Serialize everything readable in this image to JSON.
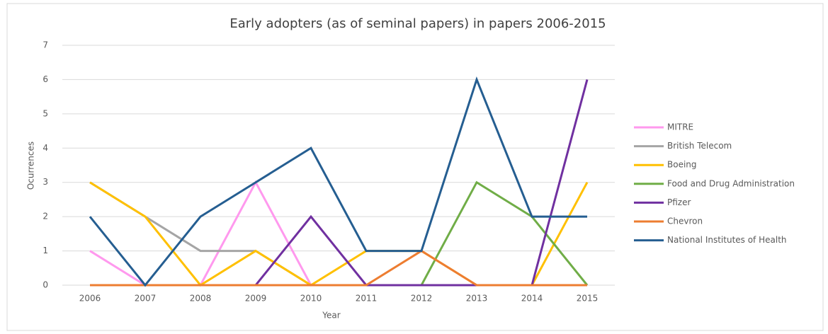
{
  "chart_data": {
    "type": "line",
    "title": "Early adopters (as of seminal papers) in papers 2006-2015",
    "x_label": "Year",
    "y_label": "Ocurrences",
    "categories": [
      "2006",
      "2007",
      "2008",
      "2009",
      "2010",
      "2011",
      "2012",
      "2013",
      "2014",
      "2015"
    ],
    "series": [
      {
        "name": "MITRE",
        "color": "#ff99ee",
        "values": [
          1,
          0,
          0,
          3,
          0,
          0,
          0,
          0,
          0,
          0
        ]
      },
      {
        "name": "British Telecom",
        "color": "#a5a5a5",
        "values": [
          3,
          2,
          1,
          1,
          0,
          0,
          0,
          0,
          0,
          0
        ]
      },
      {
        "name": "Boeing",
        "color": "#ffc000",
        "values": [
          3,
          2,
          0,
          1,
          0,
          1,
          1,
          0,
          0,
          3
        ]
      },
      {
        "name": "Food and Drug Administration",
        "color": "#70ad47",
        "values": [
          0,
          0,
          0,
          0,
          0,
          0,
          0,
          3,
          2,
          0
        ]
      },
      {
        "name": "Pfizer",
        "color": "#7030a0",
        "values": [
          0,
          0,
          0,
          0,
          2,
          0,
          0,
          0,
          0,
          6
        ]
      },
      {
        "name": "Chevron",
        "color": "#ed7d31",
        "values": [
          0,
          0,
          0,
          0,
          0,
          0,
          1,
          0,
          0,
          0
        ]
      },
      {
        "name": "National Institutes of Health",
        "color": "#255e91",
        "values": [
          2,
          0,
          2,
          3,
          4,
          1,
          1,
          6,
          2,
          2
        ]
      }
    ],
    "ylim": [
      0,
      7
    ],
    "yticks": [
      0,
      1,
      2,
      3,
      4,
      5,
      6,
      7
    ],
    "grid": true,
    "legend": "right"
  }
}
